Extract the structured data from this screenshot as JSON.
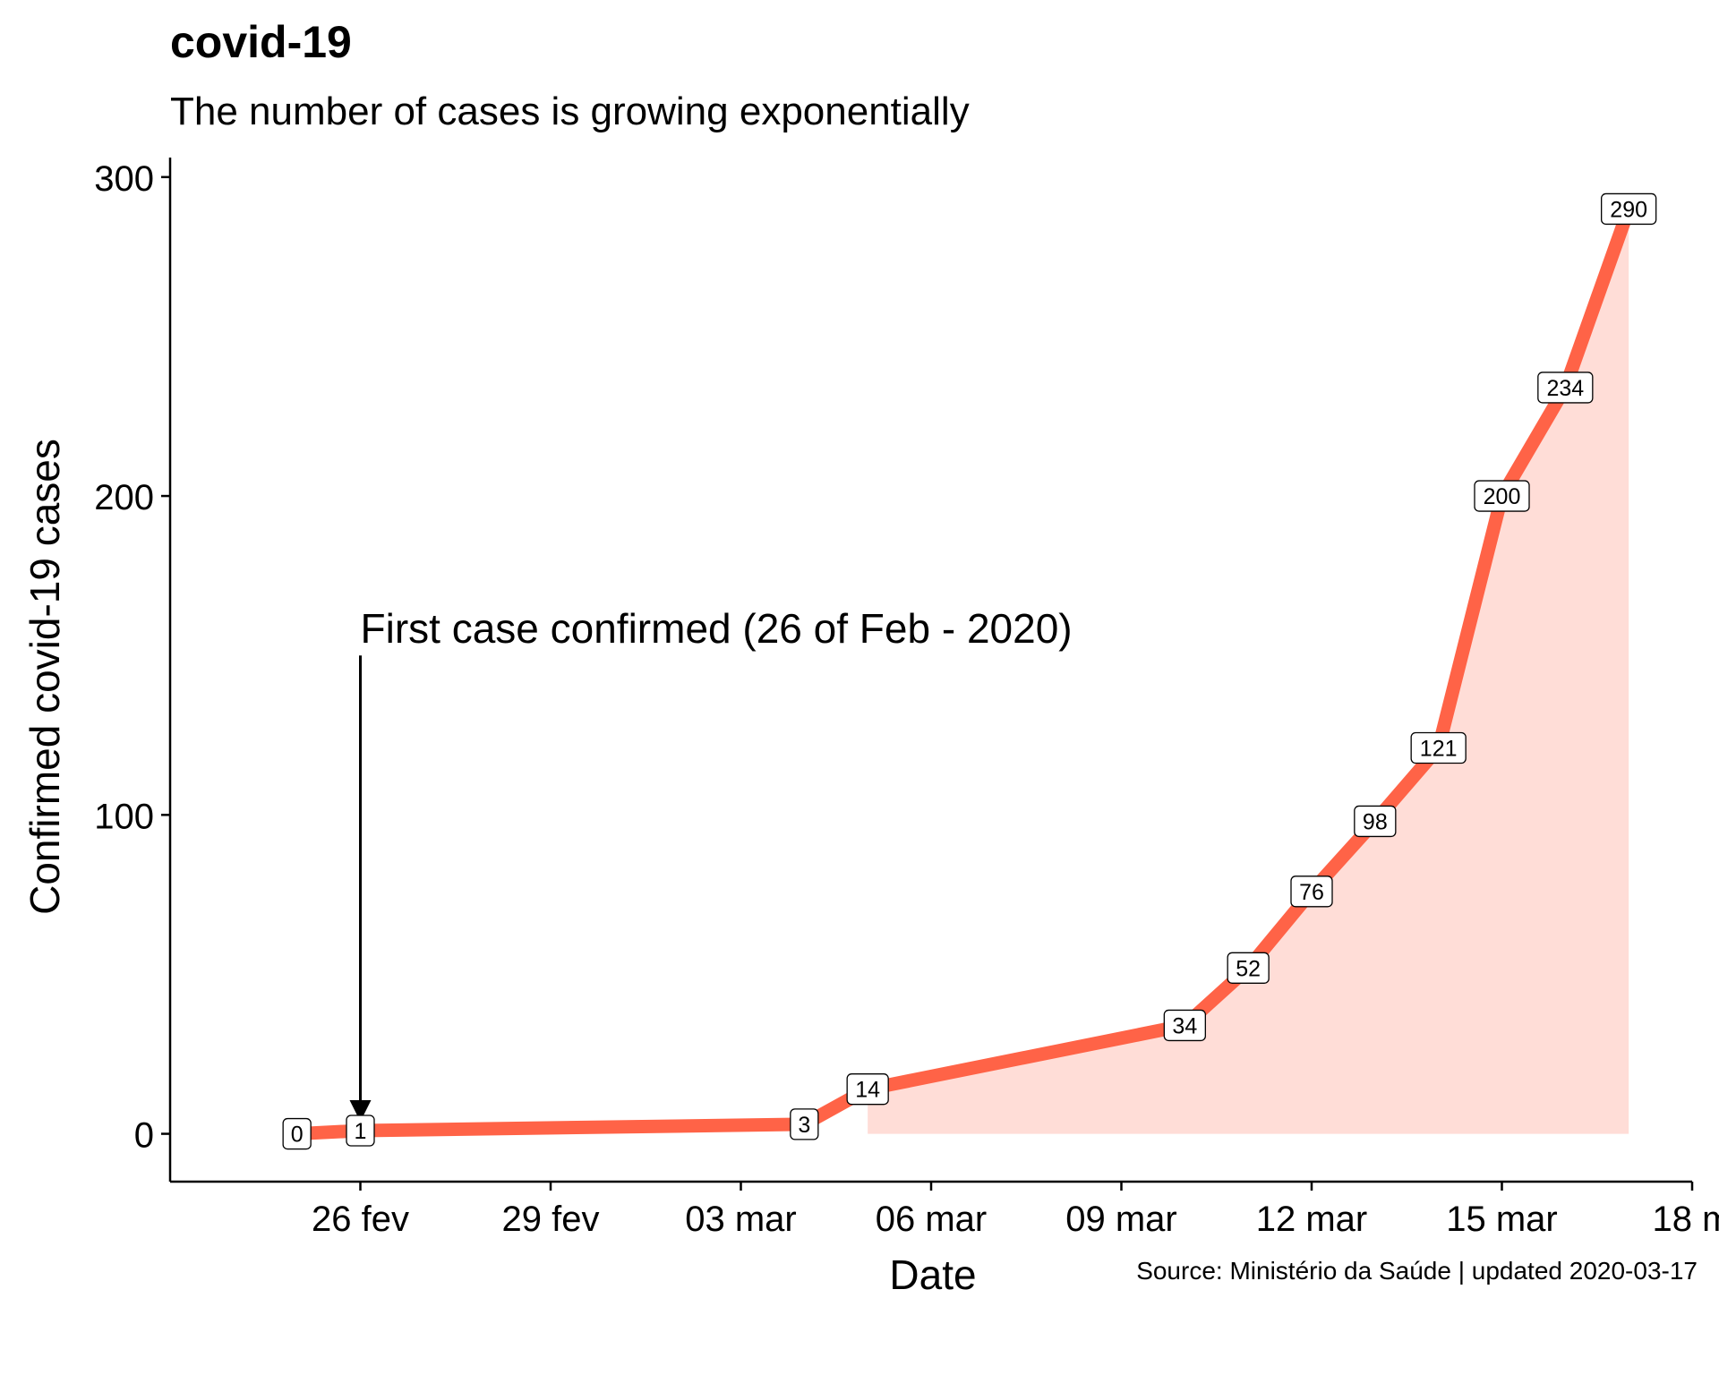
{
  "chart_data": {
    "type": "area",
    "title": "covid-19",
    "subtitle": "The number of cases is growing exponentially",
    "xlabel": "Date",
    "ylabel": "Confirmed covid-19 cases",
    "caption": "Source: Ministério da Saúde | updated 2020-03-17",
    "x_type": "date",
    "xlim": [
      "2020-02-23",
      "2020-03-18"
    ],
    "ylim": [
      -15,
      305
    ],
    "x_ticks": [
      {
        "date": "2020-02-26",
        "label": "26 fev"
      },
      {
        "date": "2020-02-29",
        "label": "29 fev"
      },
      {
        "date": "2020-03-03",
        "label": "03 mar"
      },
      {
        "date": "2020-03-06",
        "label": "06 mar"
      },
      {
        "date": "2020-03-09",
        "label": "09 mar"
      },
      {
        "date": "2020-03-12",
        "label": "12 mar"
      },
      {
        "date": "2020-03-15",
        "label": "15 mar"
      },
      {
        "date": "2020-03-18",
        "label": "18 m"
      }
    ],
    "y_ticks": [
      0,
      100,
      200,
      300
    ],
    "series": [
      {
        "x": [
          "2020-02-25",
          "2020-02-26",
          "2020-03-04",
          "2020-03-05",
          "2020-03-10",
          "2020-03-11",
          "2020-03-12",
          "2020-03-13",
          "2020-03-14",
          "2020-03-15",
          "2020-03-16",
          "2020-03-17"
        ],
        "y": [
          0,
          1,
          3,
          14,
          34,
          52,
          76,
          98,
          121,
          200,
          234,
          290
        ],
        "line_color": "#ff6347",
        "fill_color": "#ffddd7",
        "fill_from": "2020-03-05"
      }
    ],
    "annotation": {
      "text": "First case confirmed (26 of Feb - 2020)",
      "arrow_x": "2020-02-26",
      "arrow_from_y": 150,
      "arrow_to_y": 1
    },
    "grid": false
  }
}
